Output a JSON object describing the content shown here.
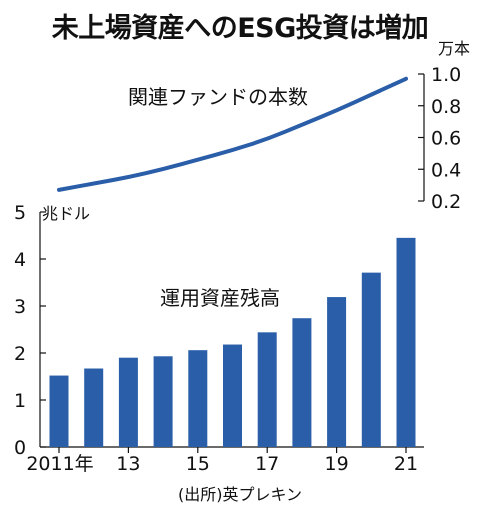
{
  "title": "未上場資産へのESG投資は増加",
  "source": "(出所)英プレキン",
  "chart_data": [
    {
      "type": "line",
      "series": [
        {
          "name": "関連ファンドの本数",
          "x": [
            2011,
            2012,
            2013,
            2014,
            2015,
            2016,
            2017,
            2018,
            2019,
            2020,
            2021
          ],
          "values": [
            0.27,
            0.31,
            0.35,
            0.4,
            0.46,
            0.52,
            0.59,
            0.68,
            0.77,
            0.87,
            0.97
          ]
        }
      ],
      "unit": "万本",
      "ylim": [
        0.2,
        1.0
      ],
      "yticks": [
        1.0,
        0.8,
        0.6,
        0.4,
        0.2
      ],
      "ytick_labels": [
        "1.0",
        "0.8",
        "0.6",
        "0.4",
        "0.2"
      ],
      "color": "#2a5ea8"
    },
    {
      "type": "bar",
      "series": [
        {
          "name": "運用資産残高",
          "categories": [
            2011,
            2012,
            2013,
            2014,
            2015,
            2016,
            2017,
            2018,
            2019,
            2020,
            2021
          ],
          "values": [
            1.52,
            1.67,
            1.9,
            1.93,
            2.06,
            2.18,
            2.44,
            2.74,
            3.19,
            3.71,
            4.45
          ]
        }
      ],
      "unit": "兆ドル",
      "ylim": [
        0,
        5
      ],
      "yticks": [
        0,
        1,
        2,
        3,
        4,
        5
      ],
      "ytick_labels": [
        "0",
        "1",
        "2",
        "3",
        "4",
        "5"
      ],
      "xtick_labels": [
        {
          "year": 2011,
          "label": "2011年"
        },
        {
          "year": 2013,
          "label": "13"
        },
        {
          "year": 2015,
          "label": "15"
        },
        {
          "year": 2017,
          "label": "17"
        },
        {
          "year": 2019,
          "label": "19"
        },
        {
          "year": 2021,
          "label": "21"
        }
      ],
      "color": "#2a5ea8"
    }
  ]
}
